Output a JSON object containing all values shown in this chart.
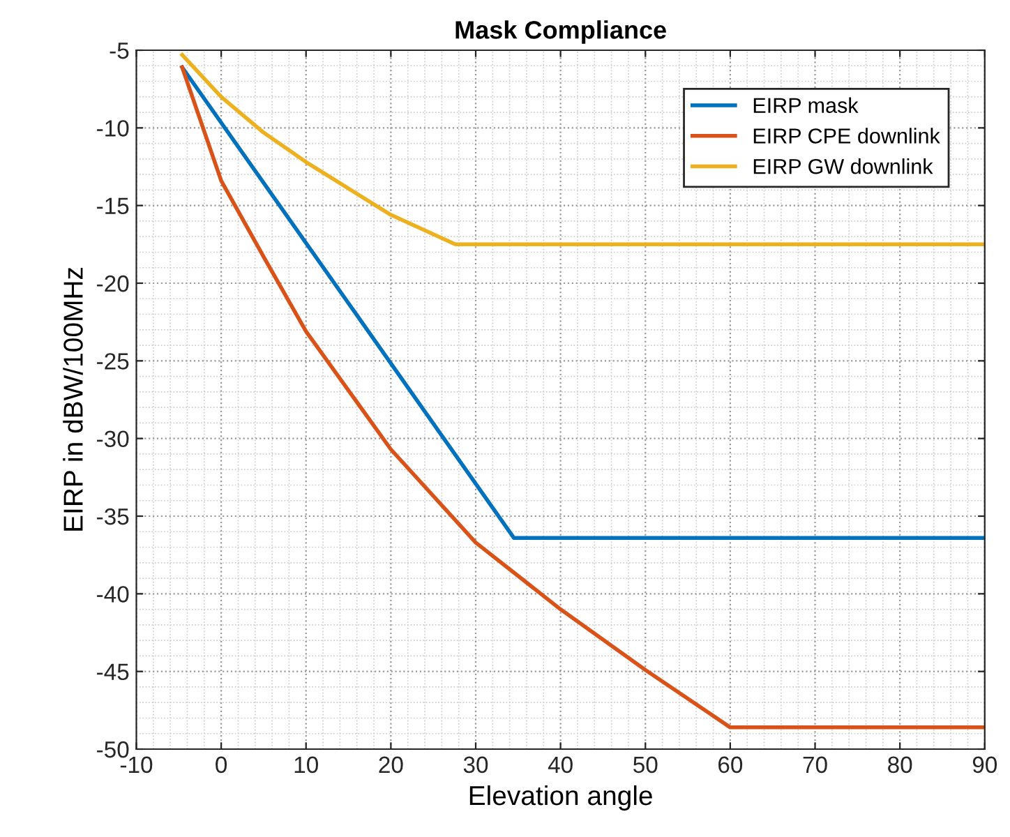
{
  "chart_data": {
    "type": "line",
    "title": "Mask Compliance",
    "xlabel": "Elevation angle",
    "ylabel": "EIRP in dBW/100MHz",
    "series": [
      {
        "name": "EIRP mask",
        "color": "#0072bd",
        "x": [
          -4.6,
          34.5,
          90
        ],
        "values": [
          -6.1,
          -36.4,
          -36.4
        ]
      },
      {
        "name": "EIRP CPE downlink",
        "color": "#d95319",
        "x": [
          -4.6,
          0,
          5,
          10,
          20,
          30,
          40,
          50,
          60,
          90
        ],
        "values": [
          -6.1,
          -13.4,
          -18.3,
          -23.1,
          -30.7,
          -36.7,
          -41.0,
          -44.9,
          -48.6,
          -48.6
        ]
      },
      {
        "name": "EIRP GW downlink",
        "color": "#edb120",
        "x": [
          -4.6,
          0,
          5,
          10,
          20,
          27.6,
          90
        ],
        "values": [
          -5.3,
          -8.0,
          -10.3,
          -12.2,
          -15.6,
          -17.5,
          -17.5
        ]
      }
    ],
    "xlim": [
      -10,
      90
    ],
    "xticks": [
      -10,
      0,
      10,
      20,
      30,
      40,
      50,
      60,
      70,
      80,
      90
    ],
    "ylim": [
      -50,
      -5
    ],
    "yticks": [
      -50,
      -45,
      -40,
      -35,
      -30,
      -25,
      -20,
      -15,
      -10,
      -5
    ],
    "grid": true,
    "legend": "top right",
    "marker": "none",
    "line_style": "solid"
  }
}
